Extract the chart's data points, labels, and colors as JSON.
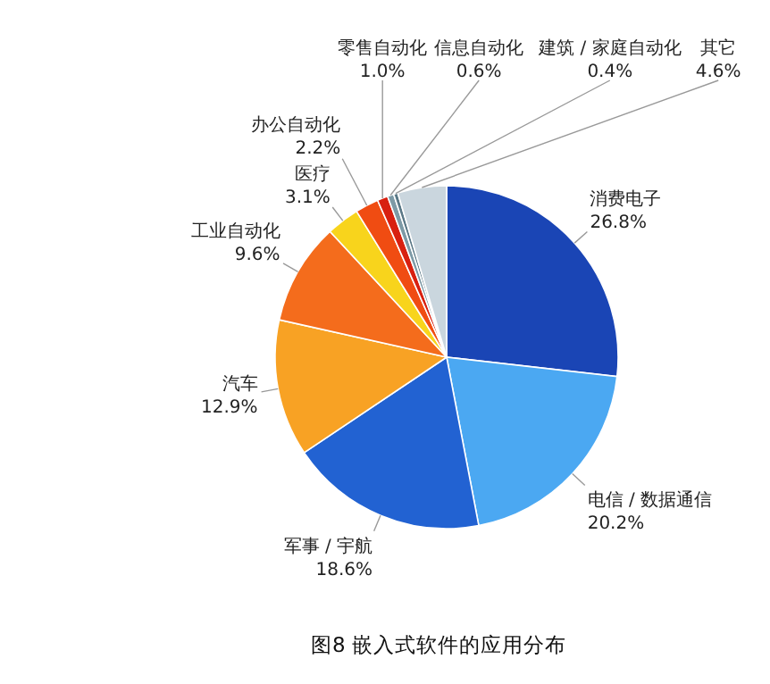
{
  "chart_data": {
    "type": "pie",
    "title": "图8 嵌入式软件的应用分布",
    "categories": [
      "消费电子",
      "电信 / 数据通信",
      "军事 / 宇航",
      "汽车",
      "工业自动化",
      "医疗",
      "办公自动化",
      "零售自动化",
      "信息自动化",
      "建筑 / 家庭自动化",
      "其它"
    ],
    "values": [
      26.8,
      20.2,
      18.6,
      12.9,
      9.6,
      3.1,
      2.2,
      1.0,
      0.6,
      0.4,
      4.6
    ],
    "value_labels": [
      "26.8%",
      "20.2%",
      "18.6%",
      "12.9%",
      "9.6%",
      "3.1%",
      "2.2%",
      "1.0%",
      "0.6%",
      "0.4%",
      "4.6%"
    ],
    "colors": [
      "#1a45b5",
      "#4ba8f2",
      "#2262d2",
      "#f8a224",
      "#f46c1c",
      "#f8d41c",
      "#f04c12",
      "#d82010",
      "#7d9aa6",
      "#5a7886",
      "#cad6de"
    ],
    "legend": false
  }
}
